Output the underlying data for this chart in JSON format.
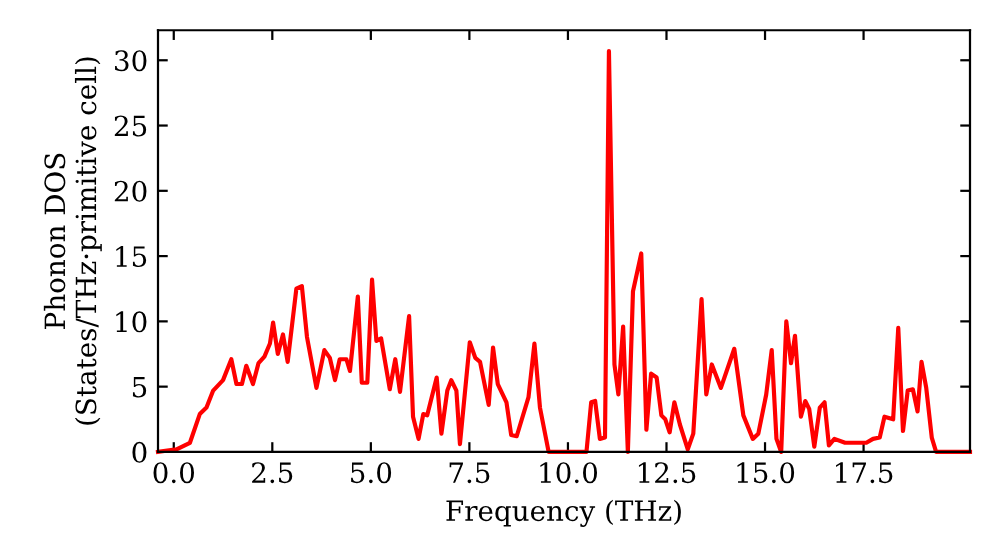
{
  "chart_data": {
    "type": "line",
    "xlabel": "Frequency (THz)",
    "ylabel": "Phonon DOS\n(States/THz·primitive cell)",
    "xlim": [
      -0.4,
      20.2
    ],
    "ylim": [
      0,
      32.3
    ],
    "xticks": [
      {
        "value": 0,
        "label": "0.0"
      },
      {
        "value": 2.5,
        "label": "2.5"
      },
      {
        "value": 5,
        "label": "5.0"
      },
      {
        "value": 7.5,
        "label": "7.5"
      },
      {
        "value": 10,
        "label": "10.0"
      },
      {
        "value": 12.5,
        "label": "12.5"
      },
      {
        "value": 15,
        "label": "15.0"
      },
      {
        "value": 17.5,
        "label": "17.5"
      }
    ],
    "yticks": [
      0,
      5,
      10,
      15,
      20,
      25,
      30
    ],
    "grid": false,
    "marker": "none",
    "line_style": "solid",
    "series": [
      {
        "color": "#ff0000",
        "x": [
          -0.4,
          0.07,
          0.41,
          0.66,
          0.83,
          1.0,
          1.25,
          1.46,
          1.59,
          1.73,
          1.84,
          2.01,
          2.15,
          2.3,
          2.44,
          2.52,
          2.64,
          2.77,
          2.89,
          3.11,
          3.25,
          3.38,
          3.62,
          3.82,
          3.96,
          4.09,
          4.21,
          4.38,
          4.47,
          4.67,
          4.77,
          4.91,
          5.03,
          5.14,
          5.26,
          5.48,
          5.62,
          5.74,
          5.97,
          6.07,
          6.21,
          6.33,
          6.43,
          6.67,
          6.79,
          6.94,
          7.04,
          7.17,
          7.26,
          7.51,
          7.65,
          7.77,
          7.99,
          8.1,
          8.22,
          8.44,
          8.56,
          8.7,
          9.0,
          9.15,
          9.29,
          9.51,
          10.47,
          10.59,
          10.69,
          10.81,
          10.94,
          11.04,
          11.18,
          11.28,
          11.4,
          11.52,
          11.65,
          11.86,
          11.99,
          12.11,
          12.25,
          12.37,
          12.47,
          12.58,
          12.7,
          12.84,
          13.04,
          13.18,
          13.39,
          13.51,
          13.65,
          13.88,
          14.22,
          14.45,
          14.69,
          14.83,
          15.03,
          15.17,
          15.29,
          15.41,
          15.54,
          15.66,
          15.76,
          15.91,
          16.02,
          16.12,
          16.25,
          16.39,
          16.51,
          16.62,
          16.76,
          17.03,
          17.57,
          17.74,
          17.91,
          18.03,
          18.25,
          18.38,
          18.5,
          18.62,
          18.75,
          18.87,
          18.97,
          19.09,
          19.23,
          19.34,
          20.2
        ],
        "values": [
          0,
          0.2,
          0.7,
          2.9,
          3.4,
          4.7,
          5.5,
          7.1,
          5.2,
          5.2,
          6.6,
          5.2,
          6.8,
          7.3,
          8.3,
          9.9,
          7.5,
          9.0,
          6.9,
          12.5,
          12.7,
          8.8,
          4.9,
          7.8,
          7.2,
          5.5,
          7.1,
          7.1,
          6.2,
          11.9,
          5.3,
          5.3,
          13.2,
          8.5,
          8.7,
          4.8,
          7.1,
          4.6,
          10.4,
          2.7,
          1.0,
          2.9,
          2.8,
          5.7,
          1.4,
          4.7,
          5.5,
          4.7,
          0.6,
          8.4,
          7.2,
          6.9,
          3.6,
          8.0,
          5.2,
          3.8,
          1.3,
          1.2,
          4.2,
          8.3,
          3.4,
          0,
          0,
          3.8,
          3.9,
          1.0,
          1.1,
          30.7,
          6.7,
          4.4,
          9.6,
          0,
          12.3,
          15.2,
          1.7,
          6.0,
          5.7,
          2.8,
          2.5,
          1.5,
          3.8,
          2.1,
          0.2,
          1.4,
          11.7,
          4.4,
          6.7,
          4.9,
          7.9,
          2.8,
          1.0,
          1.4,
          4.4,
          7.8,
          1.0,
          0,
          10.0,
          6.8,
          8.9,
          2.7,
          3.9,
          3.3,
          0.4,
          3.4,
          3.8,
          0.5,
          1.0,
          0.7,
          0.7,
          1.0,
          1.1,
          2.7,
          2.5,
          9.5,
          1.6,
          4.7,
          4.8,
          3.1,
          6.9,
          4.9,
          1.1,
          0,
          0
        ]
      }
    ]
  }
}
